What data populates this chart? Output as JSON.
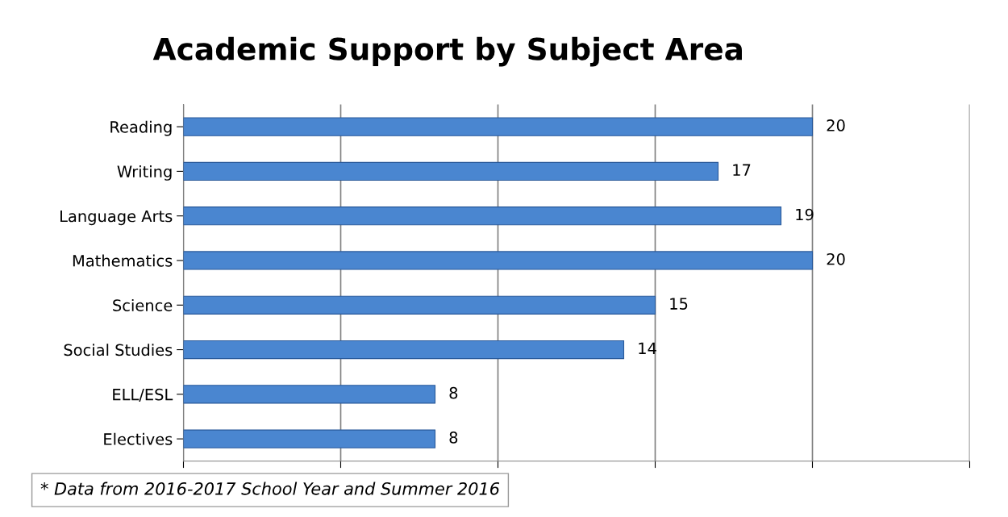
{
  "chart_data": {
    "type": "bar",
    "orientation": "horizontal",
    "title": "Academic Support by Subject Area",
    "categories": [
      "Reading",
      "Writing",
      "Language Arts",
      "Mathematics",
      "Science",
      "Social Studies",
      "ELL/ESL",
      "Electives"
    ],
    "values": [
      20,
      17,
      19,
      20,
      15,
      14,
      8,
      8
    ],
    "color": "#4a86d0",
    "xlim": [
      0,
      25
    ],
    "xticks": [
      {
        "value": 0,
        "label": null
      },
      {
        "value": 5,
        "label": null
      },
      {
        "value": 10,
        "label": null
      },
      {
        "value": 15,
        "label": null
      },
      {
        "value": 20,
        "label": null
      },
      {
        "value": 25,
        "label": null
      }
    ],
    "tick_labels": "y",
    "grid": "x",
    "data_labels": true,
    "annotations": [
      "* Data from 2016-2017 School Year and Summer 2016"
    ]
  }
}
